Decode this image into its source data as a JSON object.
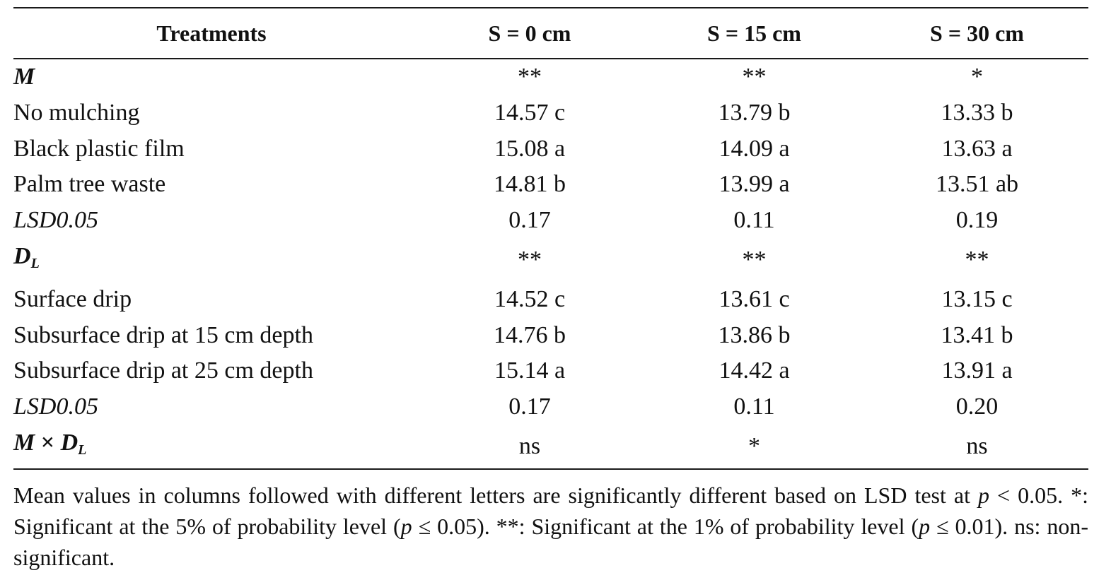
{
  "table": {
    "headers": {
      "treatments": "Treatments",
      "s0": "S = 0 cm",
      "s15": "S = 15 cm",
      "s30": "S = 30 cm"
    },
    "rows": [
      {
        "label": "M",
        "s0": "**",
        "s15": "**",
        "s30": "*"
      },
      {
        "label": "No mulching",
        "s0": "14.57 c",
        "s15": "13.79 b",
        "s30": "13.33 b"
      },
      {
        "label": "Black plastic film",
        "s0": "15.08 a",
        "s15": "14.09 a",
        "s30": "13.63 a"
      },
      {
        "label": "Palm tree waste",
        "s0": "14.81 b",
        "s15": "13.99 a",
        "s30": "13.51 ab"
      },
      {
        "label": "LSD0.05",
        "s0": "0.17",
        "s15": "0.11",
        "s30": "0.19"
      },
      {
        "label_main": "D",
        "label_sub": "L",
        "s0": "**",
        "s15": "**",
        "s30": "**"
      },
      {
        "label": "Surface drip",
        "s0": "14.52 c",
        "s15": "13.61 c",
        "s30": "13.15 c"
      },
      {
        "label": "Subsurface drip at 15 cm depth",
        "s0": "14.76 b",
        "s15": "13.86 b",
        "s30": "13.41 b"
      },
      {
        "label": "Subsurface drip at 25 cm depth",
        "s0": "15.14 a",
        "s15": "14.42 a",
        "s30": "13.91 a"
      },
      {
        "label": "LSD0.05",
        "s0": "0.17",
        "s15": "0.11",
        "s30": "0.20"
      },
      {
        "label_a": "M",
        "label_times": "×",
        "label_b": "D",
        "label_sub": "L",
        "s0": "ns",
        "s15": "*",
        "s30": "ns"
      }
    ]
  },
  "footnote": {
    "part1": "Mean values in columns followed with different letters are significantly different based on LSD test at ",
    "p1": "p",
    "part2": " < 0.05. *: Significant at the 5% of probability level (",
    "p2": "p",
    "part3": " ≤ 0.05). **: Significant at the 1% of probability level (",
    "p3": "p",
    "part4": " ≤ 0.01). ns: non-significant."
  }
}
